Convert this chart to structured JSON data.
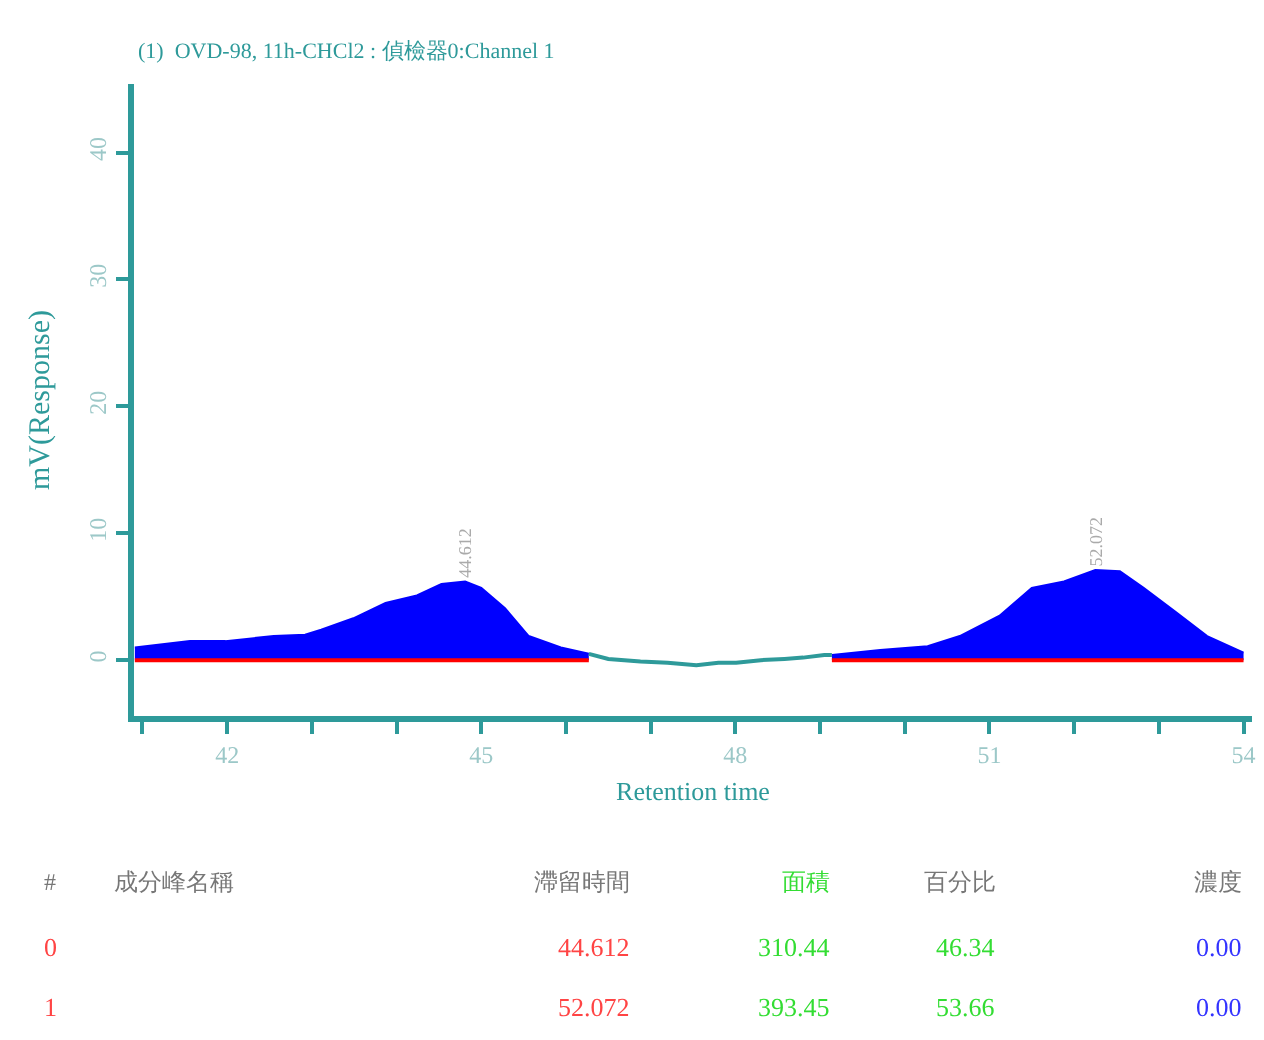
{
  "chart_data": {
    "type": "area",
    "title": "(1)  OVD-98, 11h-CHCl2 : 偵檢器0:Channel 1",
    "xlabel": "Retention time",
    "ylabel": "mV(Response)",
    "xlim": [
      40.9,
      54.1
    ],
    "xticks": [
      {
        "value": 41,
        "label": null
      },
      42,
      {
        "value": 43,
        "label": null
      },
      {
        "value": 44,
        "label": null
      },
      45,
      {
        "value": 46,
        "label": null
      },
      {
        "value": 47,
        "label": null
      },
      48,
      {
        "value": 49,
        "label": null
      },
      {
        "value": 50,
        "label": null
      },
      51,
      {
        "value": 52,
        "label": null
      },
      {
        "value": 53,
        "label": null
      },
      54
    ],
    "ylim": [
      -4.4,
      45.4
    ],
    "yticks": [
      0,
      10,
      20,
      30,
      40
    ],
    "series": [
      {
        "color": "#0000ff",
        "x": [
          40.91,
          41.56,
          41.98,
          42.55,
          42.92,
          43.11,
          43.49,
          43.87,
          44.24,
          44.53,
          44.81,
          45.0,
          45.28,
          45.56,
          45.94,
          46.27
        ],
        "values": [
          1.0,
          1.5,
          1.5,
          1.9,
          2.0,
          2.4,
          3.3,
          4.5,
          5.1,
          6.0,
          6.2,
          5.7,
          4.1,
          1.9,
          1.0,
          0.5
        ]
      },
      {
        "color": "#0000ff",
        "x": [
          49.14,
          49.71,
          50.27,
          50.65,
          51.12,
          51.5,
          51.88,
          52.25,
          52.54,
          52.82,
          53.2,
          53.57,
          54.0
        ],
        "values": [
          0.4,
          0.8,
          1.1,
          1.9,
          3.5,
          5.7,
          6.2,
          7.1,
          7.0,
          5.7,
          3.8,
          1.9,
          0.6
        ]
      },
      {
        "type": "line",
        "color": "#ff0000",
        "x": [
          40.91,
          46.27,
          47.5,
          49.14,
          54.0
        ],
        "values": [
          0,
          0,
          null,
          0,
          0
        ]
      },
      {
        "type": "line",
        "color": "#2e9a9a",
        "x": [
          46.27,
          46.5,
          46.88,
          47.2,
          47.54,
          47.8,
          48.01,
          48.3,
          48.58,
          48.8,
          49.05,
          49.14
        ],
        "values": [
          0.5,
          0.1,
          -0.1,
          -0.2,
          -0.4,
          -0.2,
          -0.2,
          0.0,
          0.1,
          0.2,
          0.4,
          0.4
        ]
      }
    ],
    "annotations": [
      {
        "text": "44.612",
        "x": 44.81,
        "y": 6.2
      },
      {
        "text": "52.072",
        "x": 52.25,
        "y": 7.1
      },
      "#",
      "成分峰名稱",
      "滯留時間",
      "面積",
      "百分比",
      "濃度",
      "0",
      "44.612",
      "310.44",
      "46.34",
      "0.00",
      "1",
      "52.072",
      "393.45",
      "53.66",
      "0.00"
    ]
  }
}
